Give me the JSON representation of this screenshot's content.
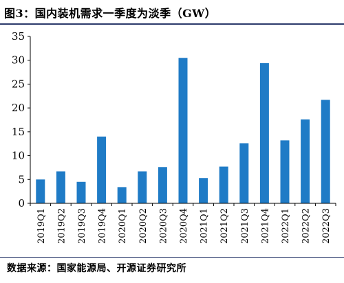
{
  "figure_title": "图3：国内装机需求一季度为淡季（GW）",
  "source": "数据来源：国家能源局、开源证券研究所",
  "colors": {
    "bar": "#1f7bc6",
    "axis": "#000000",
    "rule": "#2b3a6b"
  },
  "chart_data": {
    "type": "bar",
    "title": "图3：国内装机需求一季度为淡季（GW）",
    "categories": [
      "2019Q1",
      "2019Q2",
      "2019Q3",
      "2019Q4",
      "2020Q1",
      "2020Q2",
      "2020Q3",
      "2020Q4",
      "2021Q1",
      "2021Q2",
      "2021Q3",
      "2021Q4",
      "2022Q1",
      "2022Q2",
      "2022Q3"
    ],
    "values": [
      5.0,
      6.7,
      4.5,
      14.0,
      3.4,
      6.7,
      7.6,
      30.5,
      5.3,
      7.7,
      12.6,
      29.4,
      13.2,
      17.6,
      21.7
    ],
    "xlabel": "",
    "ylabel": "",
    "ylim": [
      0,
      35
    ],
    "yticks": [
      0,
      5,
      10,
      15,
      20,
      25,
      30,
      35
    ],
    "grid": false,
    "legend": "none"
  }
}
